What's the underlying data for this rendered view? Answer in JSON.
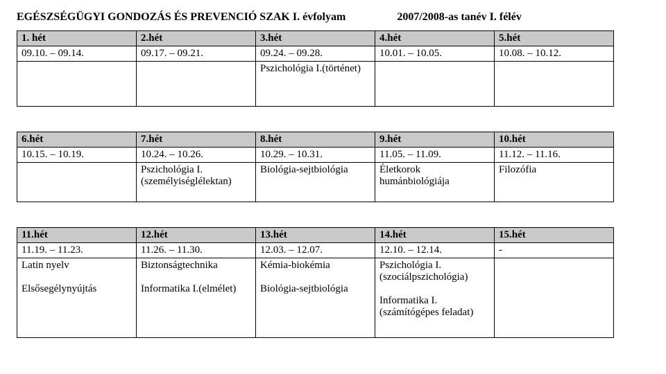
{
  "title": {
    "left": "EGÉSZSÉGÜGYI GONDOZÁS ÉS PREVENCIÓ SZAK  I. évfolyam",
    "right": "2007/2008-as tanév I. félév"
  },
  "tables": [
    {
      "header": [
        "1. hét",
        "2.hét",
        "3.hét",
        "4.hét",
        "5.hét"
      ],
      "dates": [
        "09.10. – 09.14.",
        "09.17. – 09.21.",
        "09.24. – 09.28.",
        "10.01. – 10.05.",
        "10.08. – 10.12."
      ],
      "cells": [
        "",
        "",
        "Pszichológia I.(történet)",
        "",
        ""
      ],
      "rowClass": "tall"
    },
    {
      "header": [
        "6.hét",
        "7.hét",
        "8.hét",
        "9.hét",
        "10.hét"
      ],
      "dates": [
        "10.15. – 10.19.",
        "10.24. – 10.26.",
        "10.29. – 10.31.",
        "11.05. – 11.09.",
        "11.12. – 11.16."
      ],
      "cells": [
        "",
        "Pszichológia I. (személyiséglélektan)",
        "Biológia-sejtbiológia",
        "Életkorok humánbiológiája",
        "Filozófia"
      ],
      "rowClass": "mid"
    },
    {
      "header": [
        "11.hét",
        "12.hét",
        "13.hét",
        "14.hét",
        "15.hét"
      ],
      "dates": [
        "11.19. – 11.23.",
        "11.26. – 11.30.",
        "12.03. – 12.07.",
        "12.10. – 12.14.",
        "-"
      ],
      "cells": [
        "Latin nyelv\n\nElsősegélynyújtás",
        "Biztonságtechnika\n\nInformatika I.(elmélet)",
        "Kémia-biokémia\n\nBiológia-sejtbiológia",
        "Pszichológia I. (szociálpszichológia)\n\nInformatika I. (számítógépes feladat)",
        ""
      ],
      "rowClass": "big"
    }
  ]
}
